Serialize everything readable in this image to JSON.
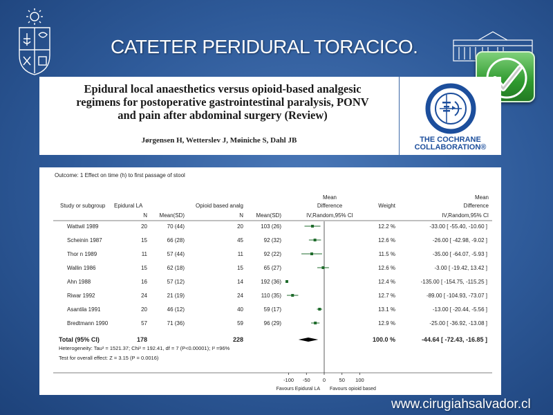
{
  "slide": {
    "title": "CATETER PERIDURAL TORACICO.",
    "footer_url": "www.cirugiahsalvador.cl"
  },
  "review": {
    "title_lines": [
      "Epidural local anaesthetics versus opioid-based analgesic",
      "regimens for postoperative gastrointestinal paralysis, PONV",
      "and pain after abdominal surgery (Review)"
    ],
    "authors": "Jørgensen H, Wetterslev J, Møiniche S, Dahl JB"
  },
  "cochrane": {
    "line1": "THE COCHRANE",
    "line2": "COLLABORATION®"
  },
  "colors": {
    "accent_green": "#2f9a2f",
    "cochrane_blue": "#1c4e9c",
    "marker_green": "#1f6b2c"
  },
  "chart_data": {
    "type": "forest",
    "outcome": "Outcome:    1 Effect on time (h) to first passage of stool",
    "headers": {
      "study": "Study or subgroup",
      "epidural": "Epidural LA",
      "n": "N",
      "mean_sd": "Mean(SD)",
      "opioid": "Opioid based analg",
      "mean_diff_top": "Mean",
      "mean_diff_mid": "Difference",
      "mean_diff_bottom": "IV,Random,95% CI",
      "weight": "Weight",
      "mean_diff_r_top": "Mean",
      "mean_diff_r_mid": "Difference",
      "mean_diff_r_bottom": "IV,Random,95% CI"
    },
    "studies": [
      {
        "name": "Wattwil 1989",
        "n1": "20",
        "ms1": "70 (44)",
        "n2": "20",
        "ms2": "103 (26)",
        "weight": "12.2 %",
        "ci_text": "-33.00 [ -55.40, -10.60 ]",
        "md": -33.0,
        "lo": -55.4,
        "hi": -10.6
      },
      {
        "name": "Scheinin 1987",
        "n1": "15",
        "ms1": "66 (28)",
        "n2": "45",
        "ms2": "92 (32)",
        "weight": "12.6 %",
        "ci_text": "-26.00 [ -42.98, -9.02 ]",
        "md": -26.0,
        "lo": -42.98,
        "hi": -9.02
      },
      {
        "name": "Thor  n 1989",
        "n1": "11",
        "ms1": "57 (44)",
        "n2": "11",
        "ms2": "92 (22)",
        "weight": "11.5 %",
        "ci_text": "-35.00 [ -64.07, -5.93 ]",
        "md": -35.0,
        "lo": -64.07,
        "hi": -5.93
      },
      {
        "name": "Wallin 1986",
        "n1": "15",
        "ms1": "62 (18)",
        "n2": "15",
        "ms2": "65 (27)",
        "weight": "12.6 %",
        "ci_text": "-3.00 [ -19.42, 13.42 ]",
        "md": -3.0,
        "lo": -19.42,
        "hi": 13.42
      },
      {
        "name": "Ahn 1988",
        "n1": "16",
        "ms1": "57 (12)",
        "n2": "14",
        "ms2": "192 (36)",
        "weight": "12.4 %",
        "ci_text": "-135.00 [ -154.75, -115.25 ]",
        "md": -135.0,
        "lo": -154.75,
        "hi": -115.25
      },
      {
        "name": "Riwar 1992",
        "n1": "24",
        "ms1": "21 (19)",
        "n2": "24",
        "ms2": "110 (35)",
        "weight": "12.7 %",
        "ci_text": "-89.00 [ -104.93, -73.07 ]",
        "md": -89.0,
        "lo": -104.93,
        "hi": -73.07
      },
      {
        "name": "Asantila 1991",
        "n1": "20",
        "ms1": "46 (12)",
        "n2": "40",
        "ms2": "59 (17)",
        "weight": "13.1 %",
        "ci_text": "-13.00 [ -20.44, -5.56 ]",
        "md": -13.0,
        "lo": -20.44,
        "hi": -5.56
      },
      {
        "name": "Bredtmann 1990",
        "n1": "57",
        "ms1": "71 (36)",
        "n2": "59",
        "ms2": "96 (29)",
        "weight": "12.9 %",
        "ci_text": "-25.00 [ -36.92, -13.08 ]",
        "md": -25.0,
        "lo": -36.92,
        "hi": -13.08
      }
    ],
    "total": {
      "label": "Total (95% CI)",
      "n1": "178",
      "n2": "228",
      "weight": "100.0 %",
      "ci_text": "-44.64 [ -72.43, -16.85 ]",
      "md": -44.64,
      "lo": -72.43,
      "hi": -16.85
    },
    "heterogeneity": "Heterogeneity: Tau² = 1521.37; Chi² = 192.41, df = 7 (P<0.00001); I² =96%",
    "overall_effect": "Test for overall effect: Z = 3.15 (P = 0.0016)",
    "x_ticks": [
      -100,
      -50,
      0,
      50,
      100
    ],
    "x_tick_labels": [
      "-100",
      "-50",
      "0",
      "50",
      "100"
    ],
    "xlim": [
      -105,
      105
    ],
    "favours_left": "Favours Epidural LA",
    "favours_right": "Favours opioid based"
  }
}
